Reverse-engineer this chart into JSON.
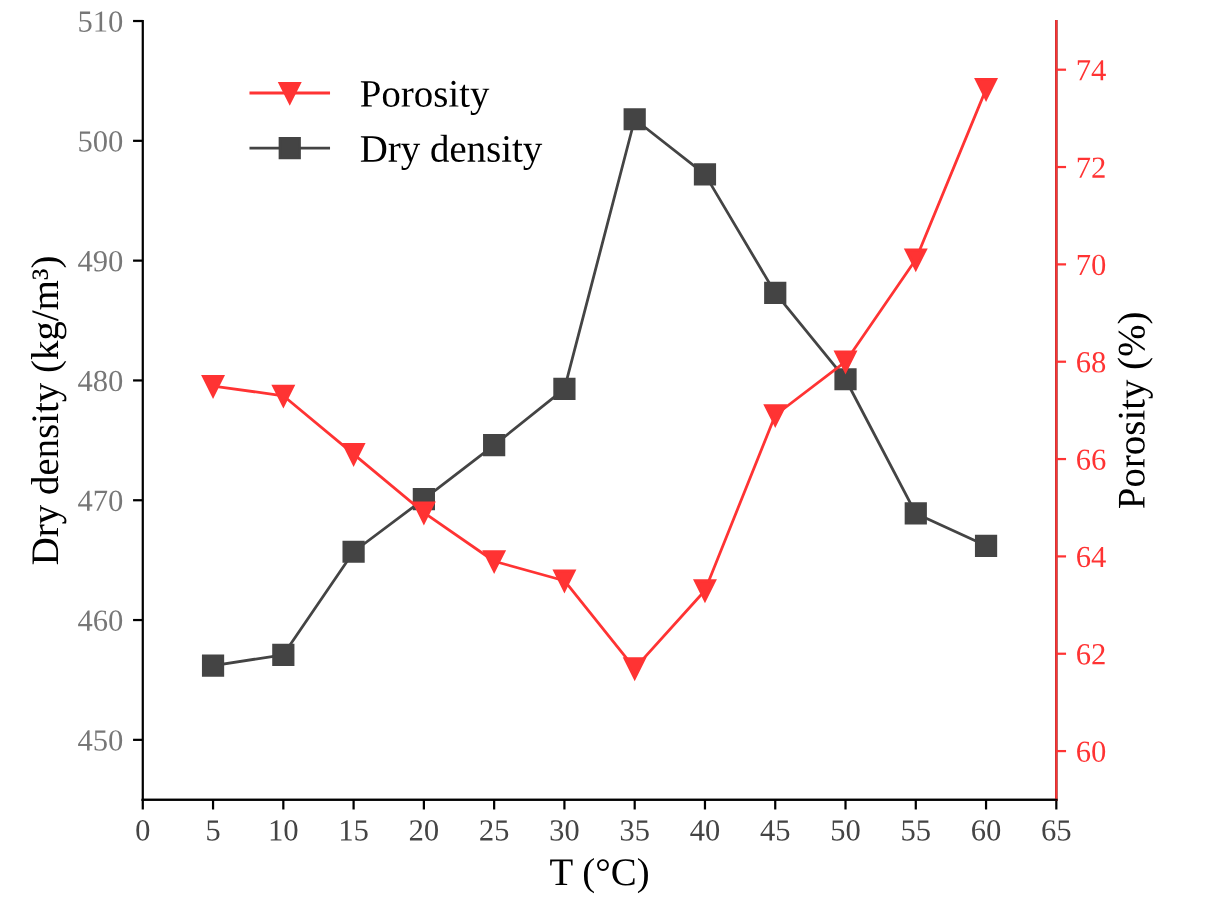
{
  "chart_data": {
    "type": "line",
    "xlabel": "T (°C)",
    "ylabel": "Dry density (kg/m³)",
    "y2label": "Porosity (%)",
    "x": [
      5,
      10,
      15,
      20,
      25,
      30,
      35,
      40,
      45,
      50,
      55,
      60
    ],
    "xlim": [
      0,
      65
    ],
    "xticks": [
      0,
      5,
      10,
      15,
      20,
      25,
      30,
      35,
      40,
      45,
      50,
      55,
      60,
      65
    ],
    "ylim": [
      445,
      510
    ],
    "yticks": [
      450,
      460,
      470,
      480,
      490,
      500,
      510
    ],
    "y2lim": [
      59,
      75
    ],
    "y2ticks": [
      60,
      62,
      64,
      66,
      68,
      70,
      72,
      74
    ],
    "grid": false,
    "legend": "top left",
    "line_style": "solid",
    "series": [
      {
        "name": "Porosity",
        "color": "#ff3333",
        "axis": "y2",
        "marker": "triangle",
        "values": [
          67.5,
          67.3,
          66.1,
          64.9,
          63.9,
          63.5,
          61.7,
          63.3,
          66.9,
          68.0,
          70.1,
          73.6
        ]
      },
      {
        "name": "Dry density",
        "color": "#444444",
        "axis": "y",
        "marker": "square",
        "values": [
          456.2,
          457.1,
          465.7,
          470.1,
          474.6,
          479.3,
          501.8,
          497.2,
          487.3,
          480.1,
          468.9,
          466.2
        ]
      }
    ]
  }
}
